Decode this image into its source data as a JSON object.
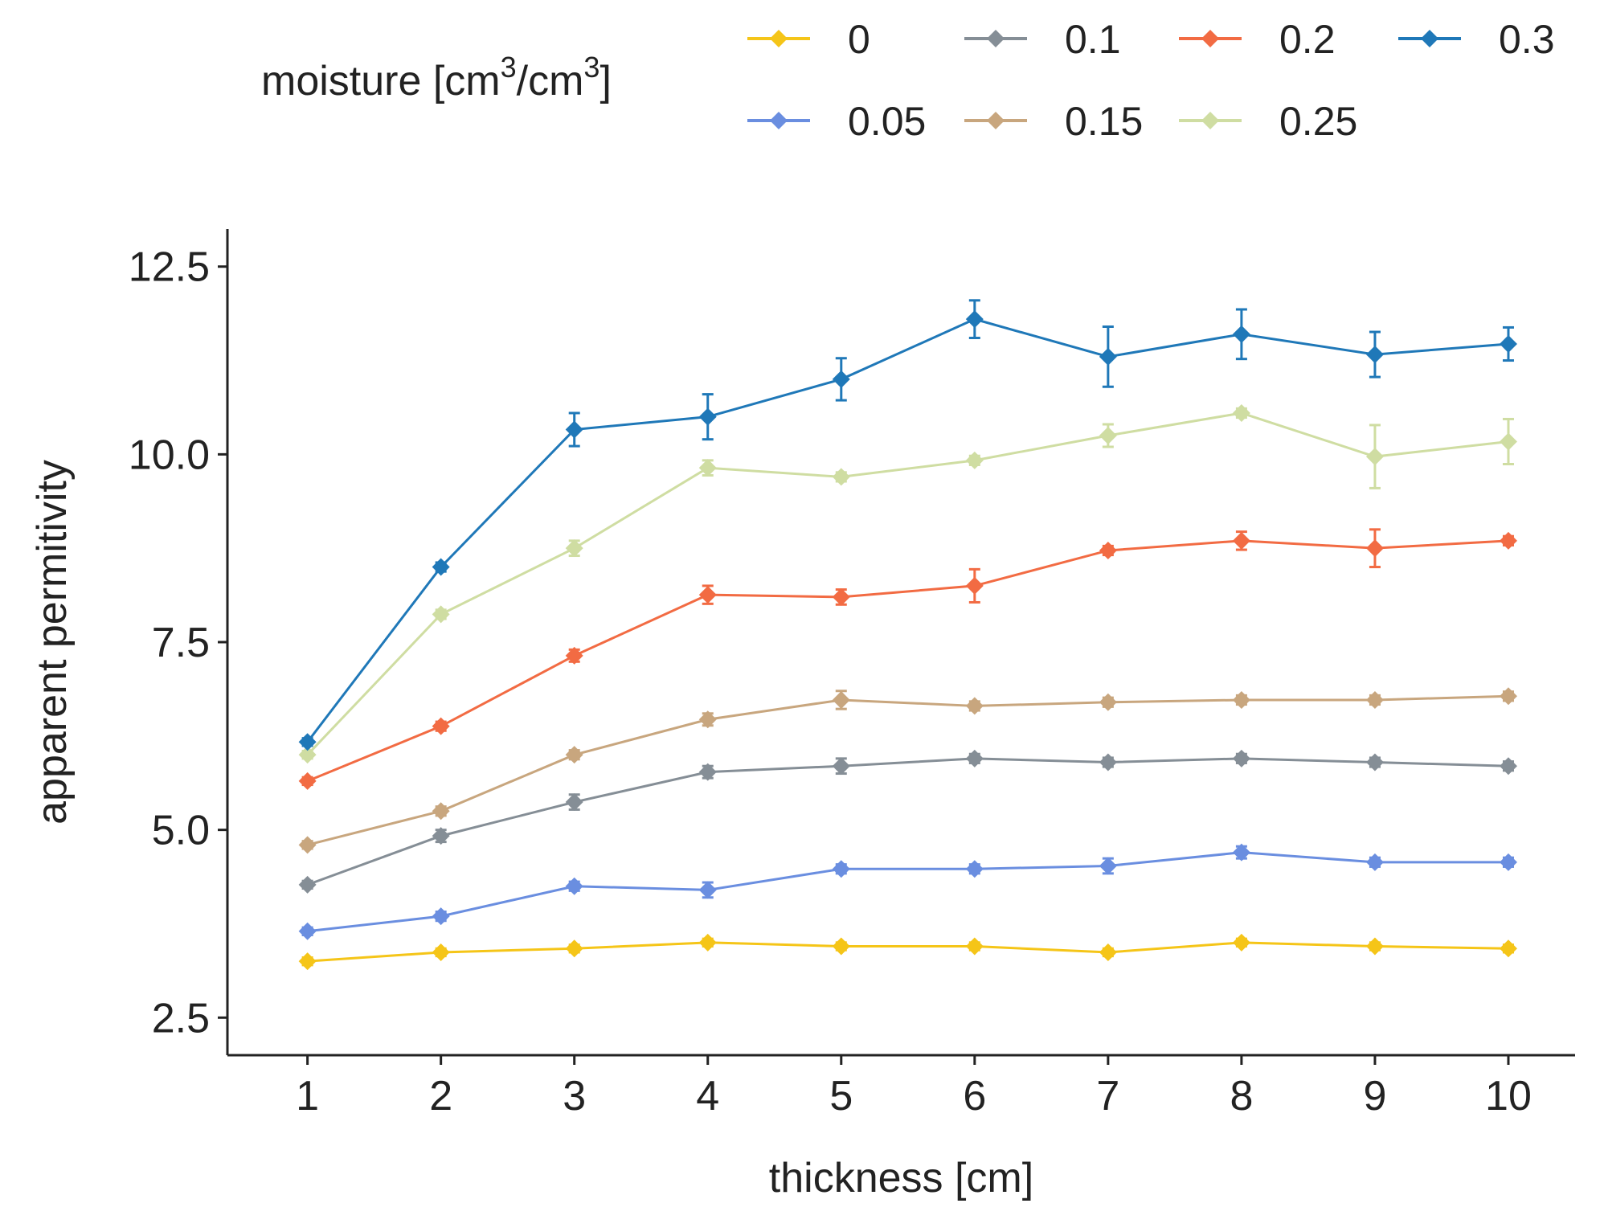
{
  "chart_data": {
    "type": "line",
    "title": "",
    "xlabel": "thickness [cm]",
    "ylabel": "apparent permitivity",
    "legend_title_main": "moisture [cm",
    "legend_title_sup1": "3",
    "legend_title_mid": "/cm",
    "legend_title_sup2": "3",
    "legend_title_end": "]",
    "legend_position": "top",
    "grid": false,
    "x": [
      1,
      2,
      3,
      4,
      5,
      6,
      7,
      8,
      9,
      10
    ],
    "x_ticks": [
      "1",
      "2",
      "3",
      "4",
      "5",
      "6",
      "7",
      "8",
      "9",
      "10"
    ],
    "xlim": [
      0.4,
      10.5
    ],
    "ylim": [
      2.0,
      13.0
    ],
    "y_ticks": [
      2.5,
      5.0,
      7.5,
      10.0,
      12.5
    ],
    "y_tick_labels": [
      "2.5",
      "5.0",
      "7.5",
      "10.0",
      "12.5"
    ],
    "series": [
      {
        "name": "0",
        "color": "#F5C518",
        "values": [
          3.25,
          3.37,
          3.42,
          3.5,
          3.45,
          3.45,
          3.37,
          3.5,
          3.45,
          3.42
        ],
        "errors": [
          0.05,
          0.05,
          0.05,
          0.05,
          0.05,
          0.05,
          0.05,
          0.05,
          0.05,
          0.05
        ]
      },
      {
        "name": "0.05",
        "color": "#6A8EE0",
        "values": [
          3.65,
          3.85,
          4.25,
          4.2,
          4.48,
          4.48,
          4.52,
          4.7,
          4.57,
          4.57
        ],
        "errors": [
          0.05,
          0.06,
          0.06,
          0.1,
          0.06,
          0.06,
          0.1,
          0.08,
          0.06,
          0.06
        ]
      },
      {
        "name": "0.1",
        "color": "#858E96",
        "values": [
          4.27,
          4.92,
          5.37,
          5.77,
          5.85,
          5.95,
          5.9,
          5.95,
          5.9,
          5.85
        ],
        "errors": [
          0.05,
          0.08,
          0.1,
          0.08,
          0.1,
          0.06,
          0.06,
          0.06,
          0.06,
          0.06
        ]
      },
      {
        "name": "0.15",
        "color": "#C8A67E",
        "values": [
          4.8,
          5.25,
          6.0,
          6.47,
          6.73,
          6.65,
          6.7,
          6.73,
          6.73,
          6.78
        ],
        "errors": [
          0.05,
          0.06,
          0.06,
          0.08,
          0.12,
          0.06,
          0.06,
          0.06,
          0.06,
          0.06
        ]
      },
      {
        "name": "0.2",
        "color": "#F26B43",
        "values": [
          5.65,
          6.38,
          7.32,
          8.13,
          8.1,
          8.25,
          8.72,
          8.85,
          8.75,
          8.85
        ],
        "errors": [
          0.05,
          0.06,
          0.08,
          0.12,
          0.1,
          0.22,
          0.06,
          0.12,
          0.25,
          0.06
        ]
      },
      {
        "name": "0.25",
        "color": "#CFDDA2",
        "values": [
          6.0,
          7.87,
          8.75,
          9.82,
          9.7,
          9.92,
          10.25,
          10.55,
          9.97,
          10.17
        ],
        "errors": [
          0.05,
          0.06,
          0.1,
          0.1,
          0.06,
          0.06,
          0.15,
          0.06,
          0.42,
          0.3
        ]
      },
      {
        "name": "0.3",
        "color": "#1F78B8",
        "values": [
          6.17,
          8.5,
          10.33,
          10.5,
          11.0,
          11.8,
          11.3,
          11.6,
          11.33,
          11.47
        ],
        "errors": [
          0.05,
          0.06,
          0.22,
          0.3,
          0.28,
          0.25,
          0.4,
          0.33,
          0.3,
          0.22
        ]
      }
    ],
    "legend_rows": [
      [
        "0",
        "0.1",
        "0.2",
        "0.3"
      ],
      [
        "0.05",
        "0.15",
        "0.25"
      ]
    ]
  }
}
